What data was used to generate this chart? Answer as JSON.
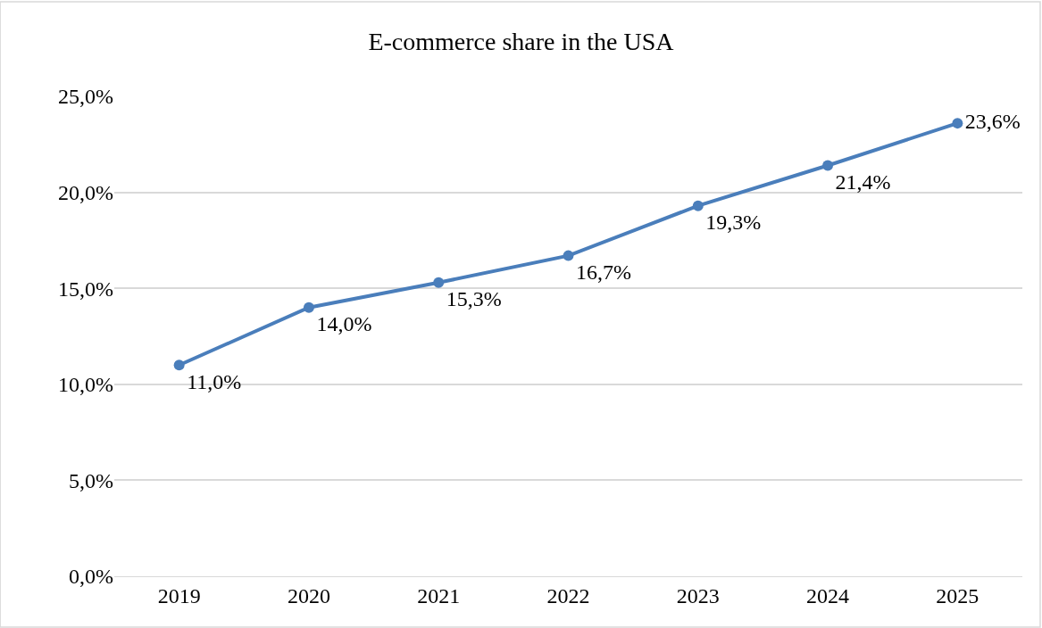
{
  "chart_data": {
    "type": "line",
    "title": "E-commerce share in the USA",
    "categories": [
      "2019",
      "2020",
      "2021",
      "2022",
      "2023",
      "2024",
      "2025"
    ],
    "series": [
      {
        "color": "#4a7ebb",
        "values": [
          11.0,
          14.0,
          15.3,
          16.7,
          19.3,
          21.4,
          23.6
        ],
        "value_labels": [
          "11,0%",
          "14,0%",
          "15,3%",
          "16,7%",
          "19,3%",
          "21,4%",
          "23,6%"
        ]
      }
    ],
    "ylim": [
      0,
      25
    ],
    "yticks": [
      {
        "value": 0,
        "label": "0,0%"
      },
      {
        "value": 5,
        "label": "5,0%"
      },
      {
        "value": 10,
        "label": "10,0%"
      },
      {
        "value": 15,
        "label": "15,0%"
      },
      {
        "value": 20,
        "label": "20,0%"
      },
      {
        "value": 25,
        "label": "25,0%"
      }
    ],
    "grid": "y",
    "marker": "circle",
    "line_style": "solid"
  }
}
